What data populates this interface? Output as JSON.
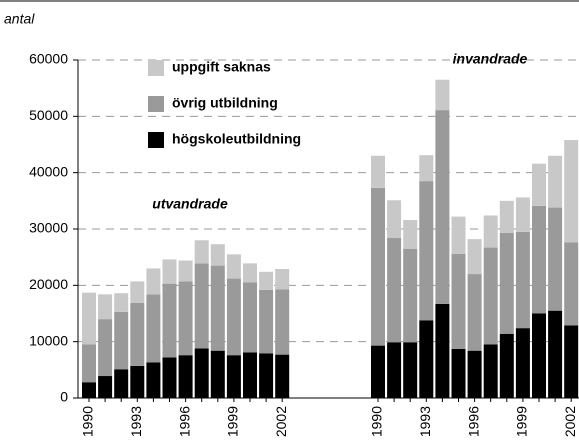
{
  "chart_data": {
    "type": "bar",
    "stacked": true,
    "ylabel": "antal",
    "annotations": [
      "utvandrade",
      "invandrade"
    ],
    "categories": [
      "1990",
      null,
      null,
      "1993",
      null,
      null,
      "1996",
      null,
      null,
      "1999",
      null,
      null,
      "2002",
      "1990",
      null,
      null,
      "1993",
      null,
      null,
      "1996",
      null,
      null,
      "1999",
      null,
      null,
      "2002"
    ],
    "series": [
      {
        "name": "högskoleutbildning",
        "color": "#000000",
        "values": [
          2800,
          3900,
          5100,
          5700,
          6300,
          7200,
          7600,
          8800,
          8400,
          7600,
          8100,
          7900,
          7700,
          9300,
          9900,
          9900,
          13800,
          16700,
          8700,
          8400,
          9500,
          11400,
          12400,
          15000,
          15500,
          12900
        ]
      },
      {
        "name": "övrig utbildning",
        "color": "#9a9a9a",
        "values": [
          6700,
          10100,
          10200,
          11200,
          12100,
          13100,
          13100,
          15100,
          15100,
          13600,
          12400,
          11300,
          11600,
          28000,
          18500,
          16600,
          24700,
          34400,
          16900,
          13600,
          17200,
          17900,
          17100,
          19100,
          18300,
          14700
        ]
      },
      {
        "name": "uppgift saknas",
        "color": "#c8c8c8",
        "values": [
          9200,
          4400,
          3300,
          3800,
          4600,
          4300,
          3700,
          4100,
          3800,
          4300,
          3400,
          3200,
          3600,
          5700,
          6700,
          5100,
          4600,
          5400,
          6600,
          6200,
          5700,
          5700,
          6100,
          7500,
          9200,
          18200
        ]
      }
    ],
    "ylim": [
      0,
      60000
    ],
    "yticks": [
      0,
      10000,
      20000,
      30000,
      40000,
      50000,
      60000
    ],
    "grid": true
  }
}
